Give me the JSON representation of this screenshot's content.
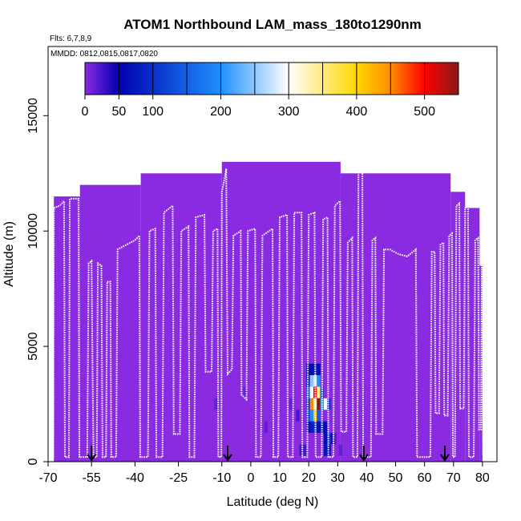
{
  "chart_data": {
    "type": "heatmap",
    "title": "ATOM1 Northbound LAM_mass_180to1290nm",
    "flights_note": "Flts: 6,7,8,9",
    "dates_note": "MMDD: 0812,0815,0817,0820",
    "xlabel": "Latitude (deg N)",
    "ylabel": "Altitude (m)",
    "xlim": [
      -70,
      85
    ],
    "ylim": [
      0,
      18000
    ],
    "x_ticks": [
      -70,
      -55,
      -40,
      -25,
      -10,
      0,
      10,
      20,
      30,
      40,
      50,
      60,
      70,
      80
    ],
    "x_tick_labels": [
      "-70",
      "-55",
      "-40",
      "-25",
      "-10",
      "0",
      "10",
      "20",
      "30",
      "40",
      "50",
      "60",
      "70",
      "80"
    ],
    "y_ticks": [
      0,
      5000,
      10000,
      15000
    ],
    "y_tick_labels": [
      "0",
      "5000",
      "10000",
      "15000"
    ],
    "colorbar": {
      "range": [
        0,
        550
      ],
      "tick_values": [
        0,
        50,
        100,
        200,
        300,
        400,
        500
      ],
      "tick_labels": [
        "0",
        "50",
        "100",
        "200",
        "300",
        "400",
        "500"
      ],
      "colors": [
        "#8a2be2",
        "#0000b0",
        "#1e90ff",
        "#ffffff",
        "#ffd700",
        "#ff8c00",
        "#ff0000",
        "#8b1a1a"
      ],
      "color_stops": [
        0,
        50,
        200,
        300,
        400,
        450,
        500,
        550
      ]
    },
    "background_value": 0,
    "coverage": [
      {
        "lat": [
          -68,
          -59
        ],
        "max_alt": 11500
      },
      {
        "lat": [
          -59,
          -38
        ],
        "max_alt": 12000
      },
      {
        "lat": [
          -38,
          -10
        ],
        "max_alt": 12500
      },
      {
        "lat": [
          -10,
          31
        ],
        "max_alt": 13000
      },
      {
        "lat": [
          31,
          69
        ],
        "max_alt": 12500
      },
      {
        "lat": [
          69,
          74
        ],
        "max_alt": 11700
      },
      {
        "lat": [
          74,
          79
        ],
        "max_alt": 11000
      },
      {
        "lat": [
          79,
          80
        ],
        "max_alt": 8500
      }
    ],
    "high_cells": [
      {
        "lat": 19.8,
        "alt": 4000,
        "value": 60
      },
      {
        "lat": 21.0,
        "alt": 4000,
        "value": 60
      },
      {
        "lat": 22.2,
        "alt": 4000,
        "value": 80
      },
      {
        "lat": 23.4,
        "alt": 4000,
        "value": 60
      },
      {
        "lat": 19.8,
        "alt": 3500,
        "value": 80
      },
      {
        "lat": 21.0,
        "alt": 3500,
        "value": 250
      },
      {
        "lat": 22.2,
        "alt": 3500,
        "value": 280
      },
      {
        "lat": 23.4,
        "alt": 3500,
        "value": 200
      },
      {
        "lat": 19.8,
        "alt": 3000,
        "value": 150
      },
      {
        "lat": 21.0,
        "alt": 3000,
        "value": 300
      },
      {
        "lat": 22.2,
        "alt": 3000,
        "value": 500
      },
      {
        "lat": 23.4,
        "alt": 3000,
        "value": 350
      },
      {
        "lat": 24.6,
        "alt": 3000,
        "value": 120
      },
      {
        "lat": 19.8,
        "alt": 2500,
        "value": 100
      },
      {
        "lat": 21.0,
        "alt": 2500,
        "value": 450
      },
      {
        "lat": 22.2,
        "alt": 2500,
        "value": 330
      },
      {
        "lat": 23.4,
        "alt": 2500,
        "value": 550
      },
      {
        "lat": 24.6,
        "alt": 2500,
        "value": 200
      },
      {
        "lat": 25.8,
        "alt": 2500,
        "value": 300
      },
      {
        "lat": 27.0,
        "alt": 2500,
        "value": 100
      },
      {
        "lat": 19.8,
        "alt": 2000,
        "value": 120
      },
      {
        "lat": 21.0,
        "alt": 2000,
        "value": 200
      },
      {
        "lat": 22.2,
        "alt": 2000,
        "value": 420
      },
      {
        "lat": 23.4,
        "alt": 2000,
        "value": 150
      },
      {
        "lat": 19.8,
        "alt": 1500,
        "value": 60
      },
      {
        "lat": 21.0,
        "alt": 1500,
        "value": 80
      },
      {
        "lat": 22.2,
        "alt": 1500,
        "value": 100
      },
      {
        "lat": 23.4,
        "alt": 1500,
        "value": 60
      },
      {
        "lat": 24.6,
        "alt": 1500,
        "value": 80
      },
      {
        "lat": 25.8,
        "alt": 1500,
        "value": 60
      },
      {
        "lat": 25.8,
        "alt": 1000,
        "value": 60
      },
      {
        "lat": 27.0,
        "alt": 1000,
        "value": 100
      },
      {
        "lat": 28.2,
        "alt": 1000,
        "value": 40
      },
      {
        "lat": 25.8,
        "alt": 500,
        "value": 70
      },
      {
        "lat": 27.0,
        "alt": 500,
        "value": 60
      },
      {
        "lat": 17.4,
        "alt": 500,
        "value": 25
      },
      {
        "lat": 18.6,
        "alt": 500,
        "value": 25
      },
      {
        "lat": 16.2,
        "alt": 2000,
        "value": 25
      },
      {
        "lat": 5.2,
        "alt": 1500,
        "value": 15
      },
      {
        "lat": -12.0,
        "alt": 2500,
        "value": 15
      },
      {
        "lat": -2.0,
        "alt": 3000,
        "value": 15
      },
      {
        "lat": 14.0,
        "alt": 2500,
        "value": 15
      },
      {
        "lat": 29.0,
        "alt": 1000,
        "value": 20
      },
      {
        "lat": 31.0,
        "alt": 500,
        "value": 15
      }
    ],
    "flight_track": [
      [
        -68.2,
        200
      ],
      [
        -68.0,
        11000
      ],
      [
        -66.0,
        11100
      ],
      [
        -64.5,
        11300
      ],
      [
        -64.2,
        200
      ],
      [
        -62.8,
        200
      ],
      [
        -62.5,
        11400
      ],
      [
        -59.5,
        11400
      ],
      [
        -59.2,
        200
      ],
      [
        -56.5,
        200
      ],
      [
        -56.0,
        8600
      ],
      [
        -55.0,
        8700
      ],
      [
        -54.6,
        3500
      ],
      [
        -54.3,
        200
      ],
      [
        -53.2,
        200
      ],
      [
        -52.8,
        8600
      ],
      [
        -51.6,
        8500
      ],
      [
        -51.2,
        200
      ],
      [
        -50.0,
        200
      ],
      [
        -49.6,
        7800
      ],
      [
        -48.5,
        7800
      ],
      [
        -48.2,
        200
      ],
      [
        -46.5,
        200
      ],
      [
        -46.0,
        9200
      ],
      [
        -43.0,
        9400
      ],
      [
        -40.0,
        9600
      ],
      [
        -38.5,
        9800
      ],
      [
        -38.2,
        200
      ],
      [
        -35.5,
        200
      ],
      [
        -35.0,
        10000
      ],
      [
        -33.0,
        10100
      ],
      [
        -32.6,
        200
      ],
      [
        -30.5,
        200
      ],
      [
        -30.0,
        10800
      ],
      [
        -27.0,
        11100
      ],
      [
        -26.6,
        1200
      ],
      [
        -24.5,
        1200
      ],
      [
        -24.0,
        10000
      ],
      [
        -21.5,
        10200
      ],
      [
        -21.2,
        200
      ],
      [
        -19.5,
        200
      ],
      [
        -19.0,
        10600
      ],
      [
        -16.0,
        10700
      ],
      [
        -15.6,
        3900
      ],
      [
        -13.5,
        3900
      ],
      [
        -13.0,
        10000
      ],
      [
        -11.5,
        10100
      ],
      [
        -11.2,
        200
      ],
      [
        -10.2,
        200
      ],
      [
        -10.0,
        11700
      ],
      [
        -9.0,
        12300
      ],
      [
        -8.5,
        12700
      ],
      [
        -8.0,
        3800
      ],
      [
        -6.5,
        4000
      ],
      [
        -6.0,
        9800
      ],
      [
        -3.5,
        10000
      ],
      [
        -3.2,
        2900
      ],
      [
        -1.5,
        2700
      ],
      [
        -1.0,
        10000
      ],
      [
        1.5,
        10100
      ],
      [
        1.8,
        200
      ],
      [
        3.5,
        200
      ],
      [
        4.0,
        9800
      ],
      [
        7.5,
        10100
      ],
      [
        7.8,
        200
      ],
      [
        9.5,
        200
      ],
      [
        10.0,
        10600
      ],
      [
        12.5,
        10700
      ],
      [
        12.8,
        200
      ],
      [
        14.5,
        200
      ],
      [
        15.0,
        10800
      ],
      [
        17.5,
        10800
      ],
      [
        17.8,
        200
      ],
      [
        19.5,
        200
      ],
      [
        20.0,
        10700
      ],
      [
        22.0,
        10800
      ],
      [
        22.4,
        200
      ],
      [
        24.5,
        200
      ],
      [
        25.0,
        10500
      ],
      [
        26.5,
        10600
      ],
      [
        26.8,
        200
      ],
      [
        28.5,
        200
      ],
      [
        29.0,
        11100
      ],
      [
        30.8,
        11300
      ],
      [
        31.2,
        1300
      ],
      [
        33.0,
        1300
      ],
      [
        33.5,
        9500
      ],
      [
        35.0,
        9700
      ],
      [
        35.3,
        200
      ],
      [
        36.8,
        200
      ],
      [
        37.2,
        12900
      ],
      [
        38.5,
        12900
      ],
      [
        38.8,
        200
      ],
      [
        41.5,
        200
      ],
      [
        42.0,
        9600
      ],
      [
        43.0,
        9700
      ],
      [
        43.3,
        1200
      ],
      [
        45.5,
        1200
      ],
      [
        46.0,
        9200
      ],
      [
        48.0,
        9200
      ],
      [
        51.0,
        9000
      ],
      [
        54.0,
        8900
      ],
      [
        57.0,
        9200
      ],
      [
        57.4,
        200
      ],
      [
        62.0,
        200
      ],
      [
        62.5,
        9100
      ],
      [
        63.5,
        9100
      ],
      [
        63.8,
        2100
      ],
      [
        65.0,
        2100
      ],
      [
        65.5,
        9400
      ],
      [
        66.5,
        9500
      ],
      [
        66.8,
        2000
      ],
      [
        68.0,
        2000
      ],
      [
        68.5,
        9800
      ],
      [
        69.5,
        9900
      ],
      [
        69.8,
        200
      ],
      [
        70.5,
        200
      ],
      [
        71.0,
        11100
      ],
      [
        72.0,
        11200
      ],
      [
        72.3,
        2300
      ],
      [
        73.5,
        2300
      ],
      [
        74.0,
        11000
      ],
      [
        75.0,
        11100
      ],
      [
        75.3,
        200
      ],
      [
        77.0,
        200
      ],
      [
        77.5,
        9600
      ],
      [
        78.5,
        9700
      ],
      [
        78.8,
        1400
      ],
      [
        79.5,
        1400
      ],
      [
        79.8,
        9000
      ],
      [
        80.2,
        300
      ]
    ],
    "arrows_lat": [
      -55,
      -8,
      39,
      67
    ]
  }
}
